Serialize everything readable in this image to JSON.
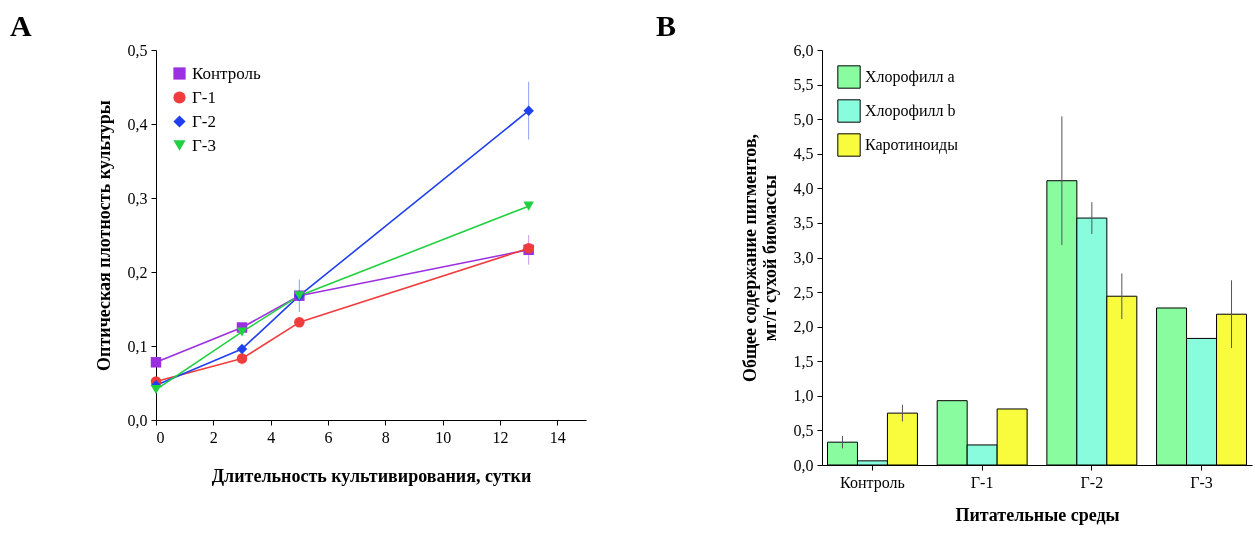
{
  "chart_data": [
    {
      "type": "line",
      "title": "A",
      "xlabel": "Длительность культивирования, сутки",
      "ylabel": "Оптическая плотность культуры",
      "x": [
        0,
        3,
        5,
        13
      ],
      "xlim": [
        0,
        15
      ],
      "xticks": [
        0,
        2,
        4,
        6,
        8,
        10,
        12,
        14
      ],
      "ylim": [
        0,
        0.5
      ],
      "yticks": [
        {
          "value": 0,
          "label": "0,0"
        },
        {
          "value": 0.1,
          "label": "0,1"
        },
        {
          "value": 0.2,
          "label": "0,2"
        },
        {
          "value": 0.3,
          "label": "0,3"
        },
        {
          "value": 0.4,
          "label": "0,4"
        },
        {
          "value": 0.5,
          "label": "0,5"
        }
      ],
      "grid": false,
      "legend": "top left",
      "series": [
        {
          "name": "Контроль",
          "color": "#9b30e0",
          "marker": "square",
          "values": [
            0.078,
            0.125,
            0.168,
            0.23
          ],
          "errors": [
            null,
            null,
            null,
            0.02
          ]
        },
        {
          "name": "Г-1",
          "color": "#f03c3c",
          "marker": "circle",
          "values": [
            0.052,
            0.083,
            0.132,
            0.232
          ],
          "errors": [
            null,
            0.008,
            null,
            null
          ]
        },
        {
          "name": "Г-2",
          "color": "#2040f0",
          "marker": "diamond",
          "values": [
            0.047,
            0.096,
            0.168,
            0.418
          ],
          "errors": [
            null,
            null,
            0.022,
            0.039
          ]
        },
        {
          "name": "Г-3",
          "color": "#20d040",
          "marker": "triangle",
          "values": [
            0.041,
            0.119,
            0.168,
            0.289
          ]
        }
      ]
    },
    {
      "type": "bar",
      "title": "B",
      "xlabel": "Питательные среды",
      "ylabel": "Общее содержание пигментов,\nмг/г сухой биомассы",
      "categories": [
        "Контроль",
        "Г-1",
        "Г-2",
        "Г-3"
      ],
      "ylim": [
        0,
        6
      ],
      "yticks": [
        {
          "value": 0,
          "label": "0,0"
        },
        {
          "value": 0.5,
          "label": "0,5"
        },
        {
          "value": 1,
          "label": "1,0"
        },
        {
          "value": 1.5,
          "label": "1,5"
        },
        {
          "value": 2,
          "label": "2,0"
        },
        {
          "value": 2.5,
          "label": "2,5"
        },
        {
          "value": 3,
          "label": "3,0"
        },
        {
          "value": 3.5,
          "label": "3,5"
        },
        {
          "value": 4,
          "label": "4,0"
        },
        {
          "value": 4.5,
          "label": "4,5"
        },
        {
          "value": 5,
          "label": "5,0"
        },
        {
          "value": 5.5,
          "label": "5,5"
        },
        {
          "value": 6,
          "label": "6,0"
        }
      ],
      "grid": false,
      "legend": "top left",
      "series": [
        {
          "name": "Хлорофилл a",
          "color": "#88fc9e",
          "values": [
            0.33,
            0.93,
            4.11,
            2.27
          ],
          "errors": [
            0.09,
            null,
            0.93,
            null
          ]
        },
        {
          "name": "Хлорофилл b",
          "color": "#88fcdc",
          "values": [
            0.06,
            0.29,
            3.57,
            1.83
          ],
          "errors": [
            null,
            null,
            0.23,
            null
          ]
        },
        {
          "name": "Каротиноиды",
          "color": "#f8fc3c",
          "values": [
            0.75,
            0.81,
            2.44,
            2.18
          ],
          "errors": [
            0.12,
            null,
            0.33,
            0.49
          ]
        }
      ]
    }
  ]
}
